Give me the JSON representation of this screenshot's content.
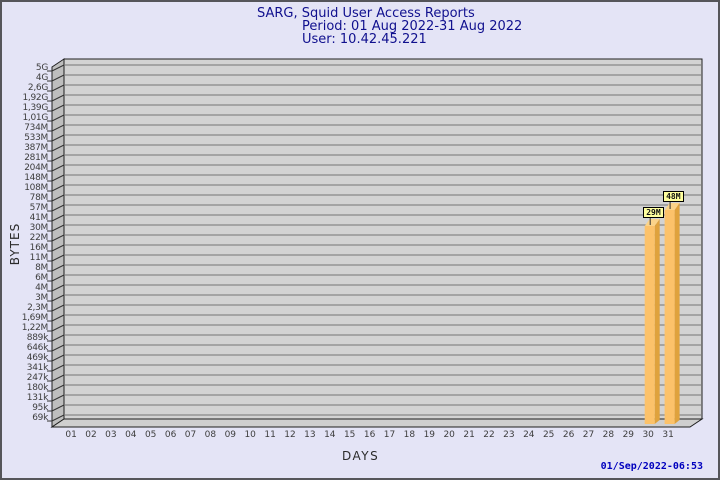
{
  "header": {
    "title": "SARG, Squid User Access Reports",
    "period": "Period: 01 Aug 2022-31 Aug 2022",
    "user": "User: 10.42.45.221"
  },
  "footer": {
    "timestamp": "01/Sep/2022-06:53"
  },
  "chart_data": {
    "type": "bar",
    "title": "SARG, Squid User Access Reports",
    "subtitle": "Period: 01 Aug 2022-31 Aug 2022 / User: 10.42.45.221",
    "xlabel": "DAYS",
    "ylabel": "BYTES",
    "y_scale": "custom-log",
    "grid": true,
    "y_ticks": [
      "5G",
      "4G",
      "2,6G",
      "1,92G",
      "1,39G",
      "1,01G",
      "734M",
      "533M",
      "387M",
      "281M",
      "204M",
      "148M",
      "108M",
      "78M",
      "57M",
      "41M",
      "30M",
      "22M",
      "16M",
      "11M",
      "8M",
      "6M",
      "4M",
      "3M",
      "2,3M",
      "1,69M",
      "1,22M",
      "889k",
      "646k",
      "469k",
      "341k",
      "247k",
      "180k",
      "131k",
      "95k",
      "69k"
    ],
    "x_ticks": [
      "01",
      "02",
      "03",
      "04",
      "05",
      "06",
      "07",
      "08",
      "09",
      "10",
      "11",
      "12",
      "13",
      "14",
      "15",
      "16",
      "17",
      "18",
      "19",
      "20",
      "21",
      "22",
      "23",
      "24",
      "25",
      "26",
      "27",
      "28",
      "29",
      "30",
      "31"
    ],
    "bars": [
      {
        "x": "30",
        "label": "29M",
        "value_bytes": 29000000
      },
      {
        "x": "31",
        "label": "48M",
        "value_bytes": 48000000
      }
    ],
    "colors": {
      "page_bg": "#E4E4F6",
      "frame_border": "#55555A",
      "plot_bg": "#D3D3D3",
      "floor_bg": "#CFCFCF",
      "wall_bg": "#BEBEBE",
      "grid_line": "#767676",
      "outline": "#1F1F1F",
      "title_text": "#10108E",
      "tick_text": "#3D3D3D",
      "timestamp_text": "#0000BE",
      "bar_front": "#FCC26A",
      "bar_side": "#DFA23D",
      "bar_top": "#FBD389",
      "value_box_bg": "#FFFF9E"
    }
  }
}
